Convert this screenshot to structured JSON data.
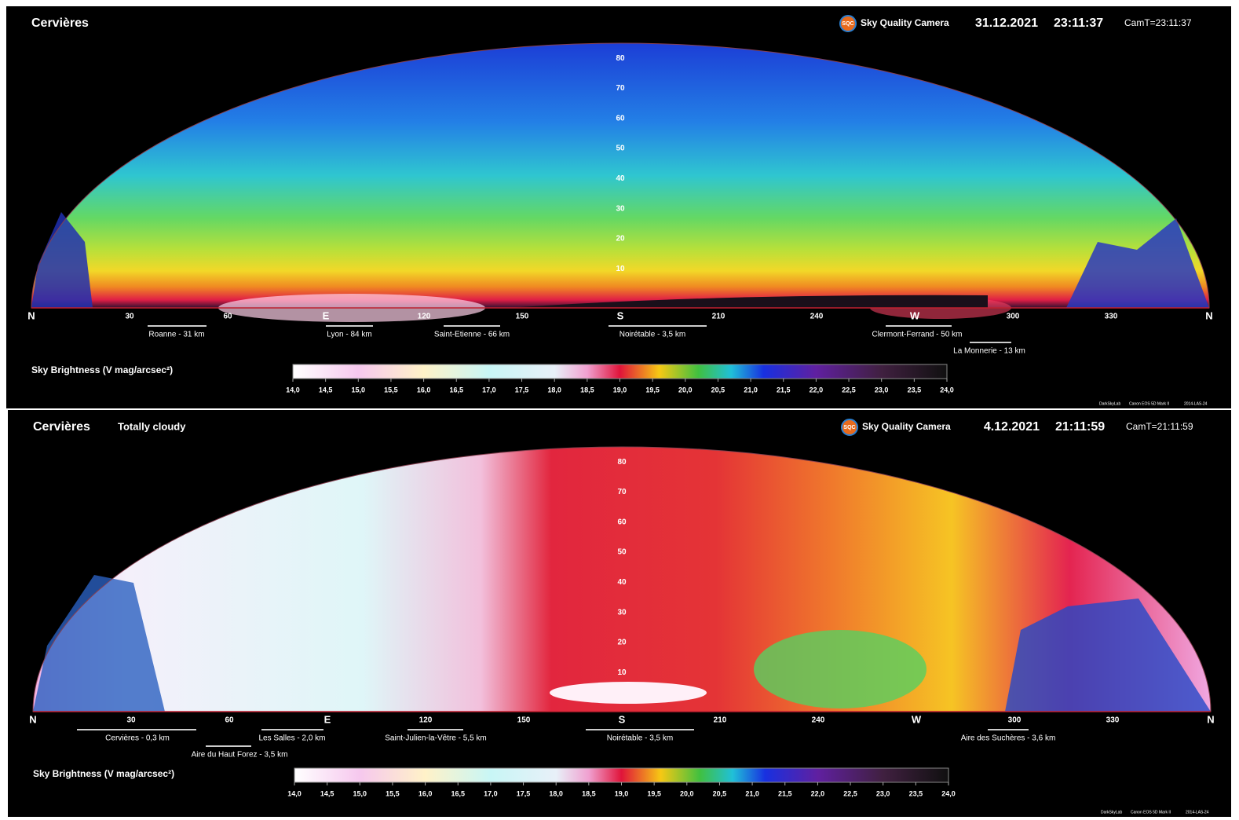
{
  "panels": [
    {
      "location": "Cervières",
      "subtitle": null,
      "brand": "Sky Quality Camera",
      "logo": "SQC",
      "date": "31.12.2021",
      "time": "23:11:37",
      "camera_time": "CamT=23:11:37",
      "altitudes": [
        80,
        70,
        60,
        50,
        40,
        30,
        20,
        10
      ],
      "azimuths": [
        "N",
        30,
        60,
        "E",
        120,
        150,
        "S",
        210,
        240,
        "W",
        300,
        330,
        "N"
      ],
      "places": [
        "Roanne - 31 km",
        "Lyon - 84 km",
        "Saint-Etienne - 66 km",
        "Noirétable - 3,5 km",
        "Clermont-Ferrand - 50 km",
        "La Monnerie - 13 km"
      ],
      "scale_title": "Sky Brightness (V mag/arcsec²)",
      "scale_range": [
        14,
        24
      ],
      "scale_ticks": [
        {
          "value": 14,
          "label": "14,0"
        },
        {
          "value": 14.5,
          "label": "14,5"
        },
        {
          "value": 15,
          "label": "15,0"
        },
        {
          "value": 15.5,
          "label": "15,5"
        },
        {
          "value": 16,
          "label": "16,0"
        },
        {
          "value": 16.5,
          "label": "16,5"
        },
        {
          "value": 17,
          "label": "17,0"
        },
        {
          "value": 17.5,
          "label": "17,5"
        },
        {
          "value": 18,
          "label": "18,0"
        },
        {
          "value": 18.5,
          "label": "18,5"
        },
        {
          "value": 19,
          "label": "19,0"
        },
        {
          "value": 19.5,
          "label": "19,5"
        },
        {
          "value": 20,
          "label": "20,0"
        },
        {
          "value": 20.5,
          "label": "20,5"
        },
        {
          "value": 21,
          "label": "21,0"
        },
        {
          "value": 21.5,
          "label": "21,5"
        },
        {
          "value": 22,
          "label": "22,0"
        },
        {
          "value": 22.5,
          "label": "22,5"
        },
        {
          "value": 23,
          "label": "23,0"
        },
        {
          "value": 23.5,
          "label": "23,5"
        },
        {
          "value": 24,
          "label": "24,0"
        }
      ],
      "credits": [
        "DarkSkyLab",
        "Canon EOS 5D Mark II",
        "2014-LAS-24"
      ]
    },
    {
      "location": "Cervières",
      "subtitle": "Totally cloudy",
      "brand": "Sky Quality Camera",
      "logo": "SQC",
      "date": "4.12.2021",
      "time": "21:11:59",
      "camera_time": "CamT=21:11:59",
      "altitudes": [
        80,
        70,
        60,
        50,
        40,
        30,
        20,
        10
      ],
      "azimuths": [
        "N",
        30,
        60,
        "E",
        120,
        150,
        "S",
        210,
        240,
        "W",
        300,
        330,
        "N"
      ],
      "places": [
        "Cervières - 0,3 km",
        "Les Salles - 2,0 km",
        "Aire du Haut Forez - 3,5 km",
        "Saint-Julien-la-Vêtre - 5,5 km",
        "Noirétable - 3,5 km",
        "Aire des Suchères - 3,6 km"
      ],
      "scale_title": "Sky Brightness (V mag/arcsec²)",
      "scale_range": [
        14,
        24
      ],
      "scale_ticks": [
        {
          "value": 14,
          "label": "14,0"
        },
        {
          "value": 14.5,
          "label": "14,5"
        },
        {
          "value": 15,
          "label": "15,0"
        },
        {
          "value": 15.5,
          "label": "15,5"
        },
        {
          "value": 16,
          "label": "16,0"
        },
        {
          "value": 16.5,
          "label": "16,5"
        },
        {
          "value": 17,
          "label": "17,0"
        },
        {
          "value": 17.5,
          "label": "17,5"
        },
        {
          "value": 18,
          "label": "18,0"
        },
        {
          "value": 18.5,
          "label": "18,5"
        },
        {
          "value": 19,
          "label": "19,0"
        },
        {
          "value": 19.5,
          "label": "19,5"
        },
        {
          "value": 20,
          "label": "20,0"
        },
        {
          "value": 20.5,
          "label": "20,5"
        },
        {
          "value": 21,
          "label": "21,0"
        },
        {
          "value": 21.5,
          "label": "21,5"
        },
        {
          "value": 22,
          "label": "22,0"
        },
        {
          "value": 22.5,
          "label": "22,5"
        },
        {
          "value": 23,
          "label": "23,0"
        },
        {
          "value": 23.5,
          "label": "23,5"
        },
        {
          "value": 24,
          "label": "24,0"
        }
      ],
      "credits": [
        "DarkSkyLab",
        "Canon EOS 5D Mark II",
        "2014-LAS-24"
      ]
    }
  ]
}
